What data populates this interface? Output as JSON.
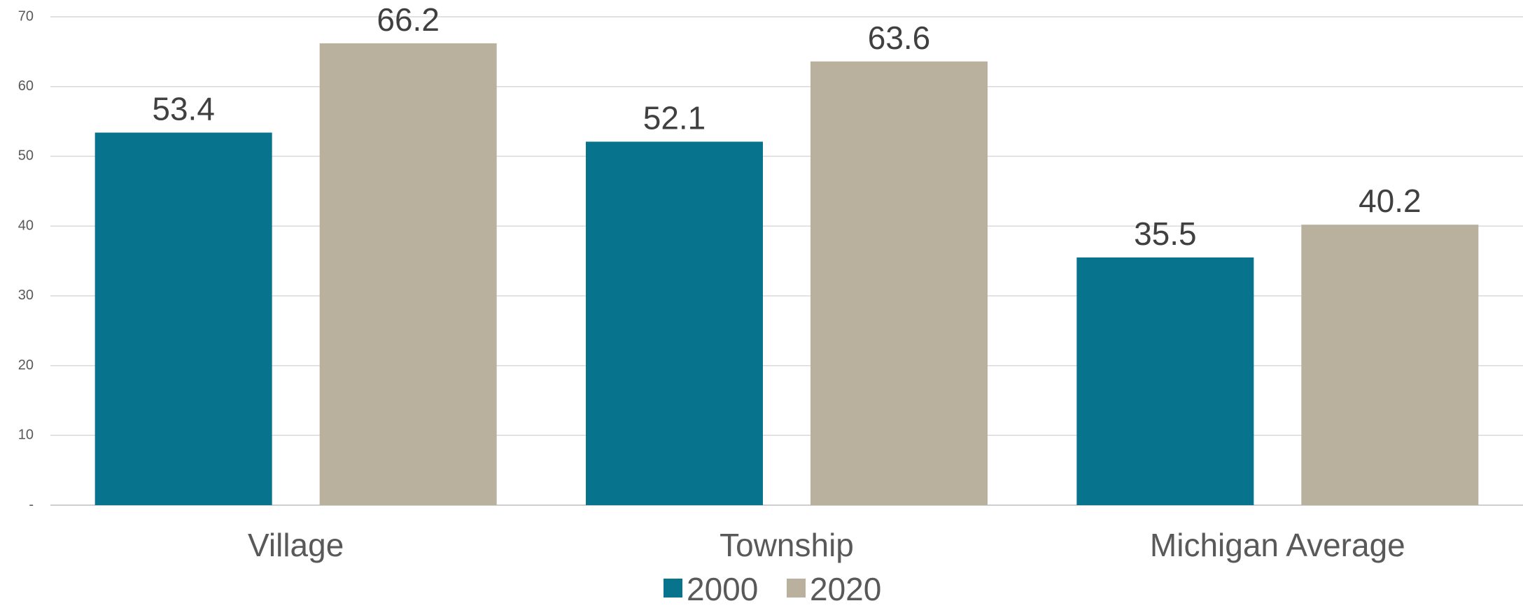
{
  "chart_data": {
    "type": "bar",
    "categories": [
      "Village",
      "Township",
      "Michigan Average"
    ],
    "series": [
      {
        "name": "2000",
        "values": [
          53.4,
          52.1,
          35.5
        ],
        "color": "#07738C"
      },
      {
        "name": "2020",
        "values": [
          66.2,
          63.6,
          40.2
        ],
        "color": "#B9B19D"
      }
    ],
    "ylim": [
      0,
      70
    ],
    "yticks": [
      0,
      10,
      20,
      30,
      40,
      50,
      60,
      70
    ],
    "ytick_labels": [
      "-",
      "10",
      "20",
      "30",
      "40",
      "50",
      "60",
      "70"
    ],
    "data_labels": [
      "53.4",
      "66.2",
      "52.1",
      "63.6",
      "35.5",
      "40.2"
    ],
    "grid": true,
    "legend_position": "bottom"
  }
}
